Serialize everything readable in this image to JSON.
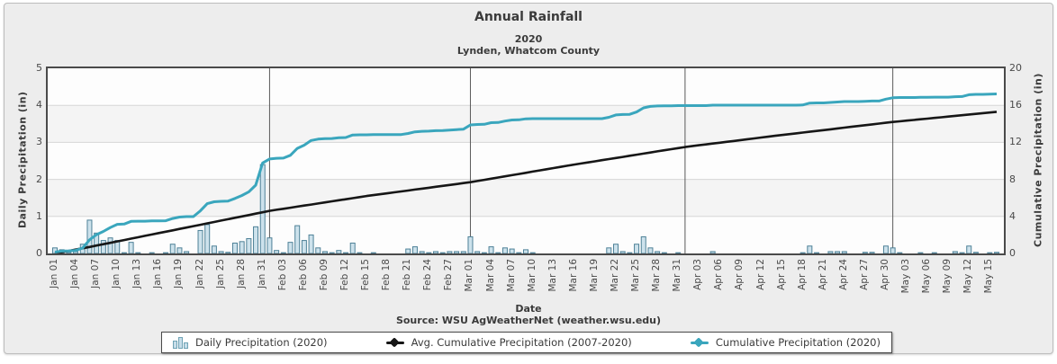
{
  "title": "Annual Rainfall",
  "subtitle_year": "2020",
  "subtitle_location": "Lynden, Whatcom County",
  "x_axis_label": "Date",
  "source_note": "Source: WSU AgWeatherNet (weather.wsu.edu)",
  "left_axis_label": "Daily Precipitation (in)",
  "right_axis_label": "Cumulative Precipitation (in)",
  "legend": [
    {
      "label": "Daily Precipitation (2020)",
      "type": "bar",
      "color": "#c6dde9"
    },
    {
      "label": "Avg. Cumulative Precipitation (2007-2020)",
      "type": "line",
      "color": "#161616"
    },
    {
      "label": "Cumulative Precipitation (2020)",
      "type": "line",
      "color": "#3aa6bd"
    }
  ],
  "colors": {
    "bar_fill": "#cde2ec",
    "bar_stroke": "#4e8197",
    "cumulative_line": "#3aa6bd",
    "avg_line": "#161616",
    "gridline": "#d6d6d6",
    "month_line": "#5a5a5a",
    "band": "#f4f4f4",
    "panel_bg": "#ededed",
    "plot_border": "#4a4a4a",
    "text": "#3b3b3b"
  },
  "chart_data": {
    "type": "bar+line",
    "title": "Annual Rainfall",
    "subtitle": "2020 — Lynden, Whatcom County",
    "xlabel": "Date",
    "start_date": "Jan 01",
    "end_date": "May 16",
    "x_tick_labels": [
      "Jan 01",
      "Jan 04",
      "Jan 07",
      "Jan 10",
      "Jan 13",
      "Jan 16",
      "Jan 19",
      "Jan 22",
      "Jan 25",
      "Jan 28",
      "Jan 31",
      "Feb 03",
      "Feb 06",
      "Feb 09",
      "Feb 12",
      "Feb 15",
      "Feb 18",
      "Feb 21",
      "Feb 24",
      "Feb 27",
      "Mar 01",
      "Mar 04",
      "Mar 07",
      "Mar 10",
      "Mar 13",
      "Mar 16",
      "Mar 19",
      "Mar 22",
      "Mar 25",
      "Mar 28",
      "Mar 31",
      "Apr 03",
      "Apr 06",
      "Apr 09",
      "Apr 12",
      "Apr 15",
      "Apr 18",
      "Apr 21",
      "Apr 24",
      "Apr 27",
      "Apr 30",
      "May 03",
      "May 06",
      "May 09",
      "May 12",
      "May 15"
    ],
    "x_tick_interval_days": 3,
    "month_separator_days": [
      31,
      60,
      91,
      121
    ],
    "left_axis": {
      "label": "Daily Precipitation (in)",
      "min": 0,
      "max": 5,
      "ticks": [
        0,
        1,
        2,
        3,
        4,
        5
      ],
      "gridlines": [
        1,
        2,
        3,
        4
      ],
      "shaded_bands": [
        [
          1,
          2
        ],
        [
          3,
          4
        ]
      ]
    },
    "right_axis": {
      "label": "Cumulative Precipitation (in)",
      "min": 0,
      "max": 20,
      "ticks": [
        0,
        4,
        8,
        12,
        16,
        20
      ]
    },
    "series": [
      {
        "name": "Daily Precipitation (2020)",
        "axis": "left",
        "kind": "bar"
      },
      {
        "name": "Avg. Cumulative Precipitation (2007-2020)",
        "axis": "right",
        "kind": "line"
      },
      {
        "name": "Cumulative Precipitation (2020)",
        "axis": "right",
        "kind": "line",
        "note": "running total of daily values, ends ≈17.2 in"
      }
    ],
    "daily_precip": [
      0.15,
      0.1,
      0.03,
      0.05,
      0.25,
      0.9,
      0.55,
      0.35,
      0.42,
      0.35,
      0.02,
      0.3,
      0.02,
      0,
      0.02,
      0,
      0.02,
      0.25,
      0.15,
      0.05,
      0,
      0.62,
      0.78,
      0.2,
      0.05,
      0.03,
      0.28,
      0.32,
      0.4,
      0.72,
      2.4,
      0.42,
      0.08,
      0.02,
      0.3,
      0.75,
      0.35,
      0.5,
      0.15,
      0.05,
      0.02,
      0.08,
      0.02,
      0.28,
      0.02,
      0,
      0.02,
      0,
      0,
      0,
      0,
      0.12,
      0.18,
      0.05,
      0.02,
      0.05,
      0.02,
      0.05,
      0.05,
      0.05,
      0.45,
      0.05,
      0.02,
      0.18,
      0.02,
      0.15,
      0.12,
      0.02,
      0.1,
      0.02,
      0,
      0,
      0,
      0,
      0,
      0,
      0,
      0,
      0,
      0,
      0.15,
      0.25,
      0.05,
      0.02,
      0.25,
      0.45,
      0.15,
      0.05,
      0.02,
      0,
      0.02,
      0,
      0,
      0,
      0,
      0.05,
      0,
      0,
      0,
      0,
      0,
      0,
      0,
      0,
      0,
      0,
      0,
      0,
      0.02,
      0.2,
      0.02,
      0,
      0.05,
      0.05,
      0.05,
      0,
      0,
      0.03,
      0.03,
      0,
      0.2,
      0.15,
      0.02,
      0,
      0,
      0.02,
      0,
      0.02,
      0,
      0,
      0.05,
      0.02,
      0.2,
      0.03,
      0,
      0.02,
      0.03
    ],
    "avg_cumulative_anchors": [
      [
        0,
        0
      ],
      [
        5,
        0.7
      ],
      [
        15,
        2.2
      ],
      [
        31,
        4.6
      ],
      [
        45,
        6.2
      ],
      [
        60,
        7.7
      ],
      [
        75,
        9.6
      ],
      [
        91,
        11.5
      ],
      [
        105,
        12.8
      ],
      [
        121,
        14.2
      ],
      [
        136,
        15.3
      ]
    ]
  }
}
